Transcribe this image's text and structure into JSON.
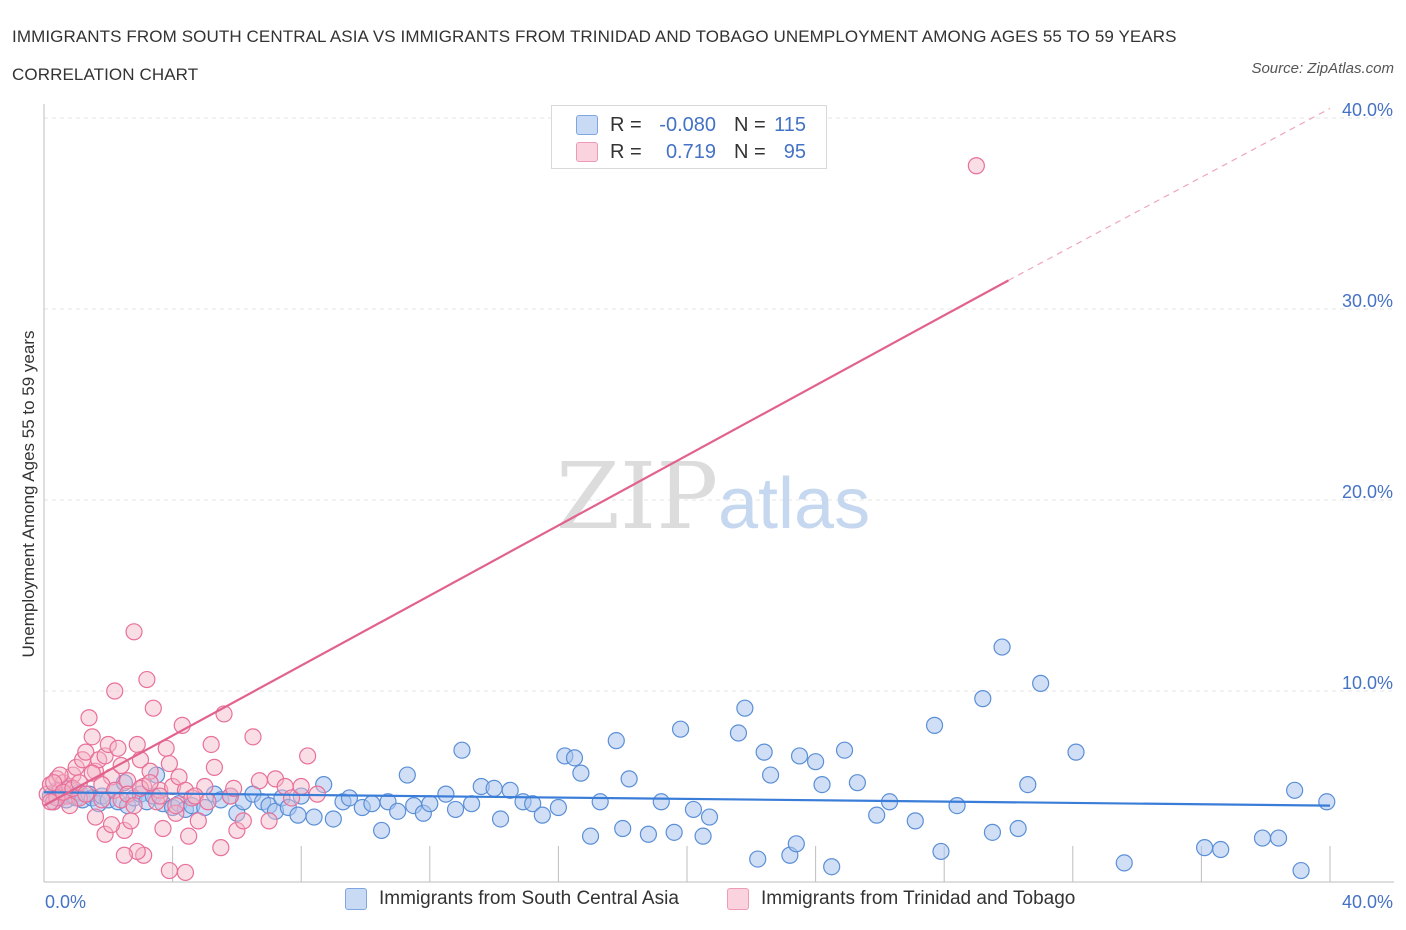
{
  "title": "IMMIGRANTS FROM SOUTH CENTRAL ASIA VS IMMIGRANTS FROM TRINIDAD AND TOBAGO UNEMPLOYMENT AMONG AGES 55 TO 59 YEARS CORRELATION CHART",
  "source": "Source: ZipAtlas.com",
  "watermark": {
    "zip": "ZIP",
    "atlas": "atlas"
  },
  "legend_top": [
    {
      "r_label": "R =",
      "r_value": "-0.080",
      "n_label": "N =",
      "n_value": "115",
      "color": "#a9c4ef"
    },
    {
      "r_label": "R =",
      "r_value": "0.719",
      "n_label": "N =",
      "n_value": "95",
      "color": "#f4b6c8"
    }
  ],
  "legend_bottom": [
    {
      "label": "Immigrants from South Central Asia",
      "color": "#a9c4ef"
    },
    {
      "label": "Immigrants from Trinidad and Tobago",
      "color": "#f4b6c8"
    }
  ],
  "chart_data": {
    "type": "scatter",
    "ylabel": "Unemployment Among Ages 55 to 59 years",
    "x_tick_labels": [
      "0.0%",
      "40.0%"
    ],
    "y_tick_labels": [
      "10.0%",
      "20.0%",
      "30.0%",
      "40.0%"
    ],
    "xlim": [
      0,
      42
    ],
    "ylim": [
      0,
      40.5
    ],
    "grid": "horizontal dashed",
    "colors": {
      "blue": "#5b8fd6",
      "blue_fill": "#a9c4ef",
      "pink": "#e8709a",
      "pink_fill": "#f4b6c8"
    },
    "series": [
      {
        "name": "Immigrants from South Central Asia",
        "trend": {
          "x": [
            0,
            40
          ],
          "y": [
            4.7,
            4.0
          ]
        },
        "points": [
          [
            0.2,
            4.5
          ],
          [
            0.3,
            4.2
          ],
          [
            0.4,
            4.8
          ],
          [
            0.5,
            4.4
          ],
          [
            0.6,
            4.6
          ],
          [
            0.7,
            4.3
          ],
          [
            0.8,
            4.9
          ],
          [
            0.9,
            4.5
          ],
          [
            1.0,
            4.4
          ],
          [
            1.1,
            4.7
          ],
          [
            1.2,
            4.3
          ],
          [
            1.4,
            4.6
          ],
          [
            1.5,
            4.4
          ],
          [
            1.7,
            4.1
          ],
          [
            1.8,
            4.5
          ],
          [
            2.0,
            4.3
          ],
          [
            2.2,
            4.8
          ],
          [
            2.3,
            4.2
          ],
          [
            2.5,
            5.2
          ],
          [
            2.6,
            4.0
          ],
          [
            2.8,
            4.4
          ],
          [
            3.0,
            4.6
          ],
          [
            3.2,
            4.2
          ],
          [
            3.4,
            4.5
          ],
          [
            3.5,
            5.6
          ],
          [
            3.7,
            4.1
          ],
          [
            4.0,
            3.9
          ],
          [
            4.2,
            4.1
          ],
          [
            4.4,
            3.8
          ],
          [
            4.6,
            4.0
          ],
          [
            5.0,
            3.9
          ],
          [
            5.3,
            4.6
          ],
          [
            5.5,
            4.3
          ],
          [
            5.8,
            4.5
          ],
          [
            6.0,
            3.6
          ],
          [
            6.2,
            4.2
          ],
          [
            6.5,
            4.6
          ],
          [
            6.8,
            4.2
          ],
          [
            7.0,
            4.0
          ],
          [
            7.2,
            3.7
          ],
          [
            7.4,
            4.4
          ],
          [
            7.6,
            3.9
          ],
          [
            7.9,
            3.5
          ],
          [
            8.0,
            4.5
          ],
          [
            8.4,
            3.4
          ],
          [
            8.7,
            5.1
          ],
          [
            9.0,
            3.3
          ],
          [
            9.3,
            4.2
          ],
          [
            9.5,
            4.4
          ],
          [
            9.9,
            3.9
          ],
          [
            10.2,
            4.1
          ],
          [
            10.5,
            2.7
          ],
          [
            10.7,
            4.2
          ],
          [
            11.0,
            3.7
          ],
          [
            11.3,
            5.6
          ],
          [
            11.5,
            4.0
          ],
          [
            11.8,
            3.6
          ],
          [
            12.0,
            4.1
          ],
          [
            12.5,
            4.6
          ],
          [
            12.8,
            3.8
          ],
          [
            13.0,
            6.9
          ],
          [
            13.3,
            4.1
          ],
          [
            13.6,
            5.0
          ],
          [
            14.0,
            4.9
          ],
          [
            14.2,
            3.3
          ],
          [
            14.5,
            4.8
          ],
          [
            14.9,
            4.2
          ],
          [
            15.2,
            4.1
          ],
          [
            15.5,
            3.5
          ],
          [
            16.0,
            3.9
          ],
          [
            16.2,
            6.6
          ],
          [
            16.5,
            6.5
          ],
          [
            16.7,
            5.7
          ],
          [
            17.0,
            2.4
          ],
          [
            17.3,
            4.2
          ],
          [
            17.8,
            7.4
          ],
          [
            18.0,
            2.8
          ],
          [
            18.2,
            5.4
          ],
          [
            18.8,
            2.5
          ],
          [
            19.2,
            4.2
          ],
          [
            19.6,
            2.6
          ],
          [
            19.8,
            8.0
          ],
          [
            20.2,
            3.8
          ],
          [
            20.5,
            2.4
          ],
          [
            20.7,
            3.4
          ],
          [
            21.6,
            7.8
          ],
          [
            21.8,
            9.1
          ],
          [
            22.2,
            1.2
          ],
          [
            22.4,
            6.8
          ],
          [
            22.6,
            5.6
          ],
          [
            23.2,
            1.4
          ],
          [
            23.4,
            2.0
          ],
          [
            23.5,
            6.6
          ],
          [
            24.0,
            6.3
          ],
          [
            24.2,
            5.1
          ],
          [
            24.5,
            0.8
          ],
          [
            24.9,
            6.9
          ],
          [
            25.3,
            5.2
          ],
          [
            25.9,
            3.5
          ],
          [
            26.3,
            4.2
          ],
          [
            27.1,
            3.2
          ],
          [
            27.7,
            8.2
          ],
          [
            27.9,
            1.6
          ],
          [
            28.4,
            4.0
          ],
          [
            29.2,
            9.6
          ],
          [
            29.5,
            2.6
          ],
          [
            29.8,
            12.3
          ],
          [
            30.3,
            2.8
          ],
          [
            30.6,
            5.1
          ],
          [
            31.0,
            10.4
          ],
          [
            32.1,
            6.8
          ],
          [
            33.6,
            1.0
          ],
          [
            36.1,
            1.8
          ],
          [
            36.6,
            1.7
          ],
          [
            37.9,
            2.3
          ],
          [
            38.4,
            2.3
          ],
          [
            38.9,
            4.8
          ],
          [
            39.1,
            0.6
          ],
          [
            39.9,
            4.2
          ]
        ]
      },
      {
        "name": "Immigrants from Trinidad and Tobago",
        "trend": {
          "x": [
            0,
            30
          ],
          "y": [
            4.0,
            31.5
          ],
          "dashed_to": {
            "x": 40,
            "y": 40.5
          }
        },
        "points": [
          [
            0.1,
            4.6
          ],
          [
            0.2,
            5.1
          ],
          [
            0.3,
            4.2
          ],
          [
            0.4,
            5.4
          ],
          [
            0.5,
            4.8
          ],
          [
            0.6,
            5.2
          ],
          [
            0.7,
            4.5
          ],
          [
            0.8,
            5.0
          ],
          [
            0.9,
            5.6
          ],
          [
            1.0,
            6.0
          ],
          [
            1.1,
            4.4
          ],
          [
            1.2,
            6.4
          ],
          [
            1.3,
            6.8
          ],
          [
            1.4,
            8.6
          ],
          [
            1.5,
            7.6
          ],
          [
            1.6,
            5.8
          ],
          [
            1.7,
            6.4
          ],
          [
            1.8,
            4.3
          ],
          [
            1.9,
            6.6
          ],
          [
            2.0,
            7.2
          ],
          [
            2.1,
            5.5
          ],
          [
            2.2,
            10.0
          ],
          [
            2.3,
            7.0
          ],
          [
            2.4,
            6.1
          ],
          [
            2.5,
            2.7
          ],
          [
            2.6,
            5.3
          ],
          [
            2.7,
            3.2
          ],
          [
            2.8,
            13.1
          ],
          [
            2.9,
            7.2
          ],
          [
            3.0,
            6.4
          ],
          [
            3.1,
            5.0
          ],
          [
            3.2,
            10.6
          ],
          [
            3.3,
            5.8
          ],
          [
            3.4,
            9.1
          ],
          [
            3.5,
            4.2
          ],
          [
            3.6,
            4.8
          ],
          [
            3.8,
            7.0
          ],
          [
            3.9,
            6.2
          ],
          [
            4.0,
            5.0
          ],
          [
            4.1,
            3.6
          ],
          [
            4.2,
            5.5
          ],
          [
            4.3,
            8.2
          ],
          [
            4.4,
            4.8
          ],
          [
            4.5,
            2.4
          ],
          [
            4.6,
            4.4
          ],
          [
            4.8,
            3.2
          ],
          [
            5.0,
            5.0
          ],
          [
            5.2,
            7.2
          ],
          [
            5.3,
            6.0
          ],
          [
            5.5,
            1.8
          ],
          [
            5.6,
            8.8
          ],
          [
            5.8,
            4.5
          ],
          [
            6.0,
            2.7
          ],
          [
            6.2,
            3.2
          ],
          [
            6.5,
            7.6
          ],
          [
            7.0,
            3.2
          ],
          [
            7.2,
            5.4
          ],
          [
            7.5,
            5.0
          ],
          [
            7.7,
            4.4
          ],
          [
            8.0,
            5.0
          ],
          [
            8.2,
            6.6
          ],
          [
            8.5,
            4.6
          ],
          [
            3.9,
            0.6
          ],
          [
            4.4,
            0.5
          ],
          [
            3.1,
            1.4
          ],
          [
            2.9,
            1.6
          ],
          [
            2.5,
            1.4
          ],
          [
            1.6,
            3.4
          ],
          [
            1.9,
            2.5
          ],
          [
            2.1,
            3.0
          ],
          [
            0.8,
            4.0
          ],
          [
            0.5,
            5.6
          ],
          [
            0.4,
            4.4
          ],
          [
            0.3,
            5.2
          ],
          [
            0.2,
            4.2
          ],
          [
            0.6,
            4.7
          ],
          [
            0.9,
            4.9
          ],
          [
            1.1,
            5.2
          ],
          [
            1.3,
            4.6
          ],
          [
            1.5,
            5.7
          ],
          [
            1.8,
            5.1
          ],
          [
            2.2,
            4.8
          ],
          [
            2.4,
            4.3
          ],
          [
            2.6,
            4.6
          ],
          [
            2.8,
            4.0
          ],
          [
            3.0,
            4.9
          ],
          [
            3.3,
            5.2
          ],
          [
            3.6,
            4.5
          ],
          [
            3.7,
            2.8
          ],
          [
            4.1,
            4.0
          ],
          [
            4.7,
            4.5
          ],
          [
            5.1,
            4.2
          ],
          [
            5.9,
            4.9
          ],
          [
            6.7,
            5.3
          ],
          [
            29.0,
            37.5
          ]
        ]
      }
    ]
  }
}
